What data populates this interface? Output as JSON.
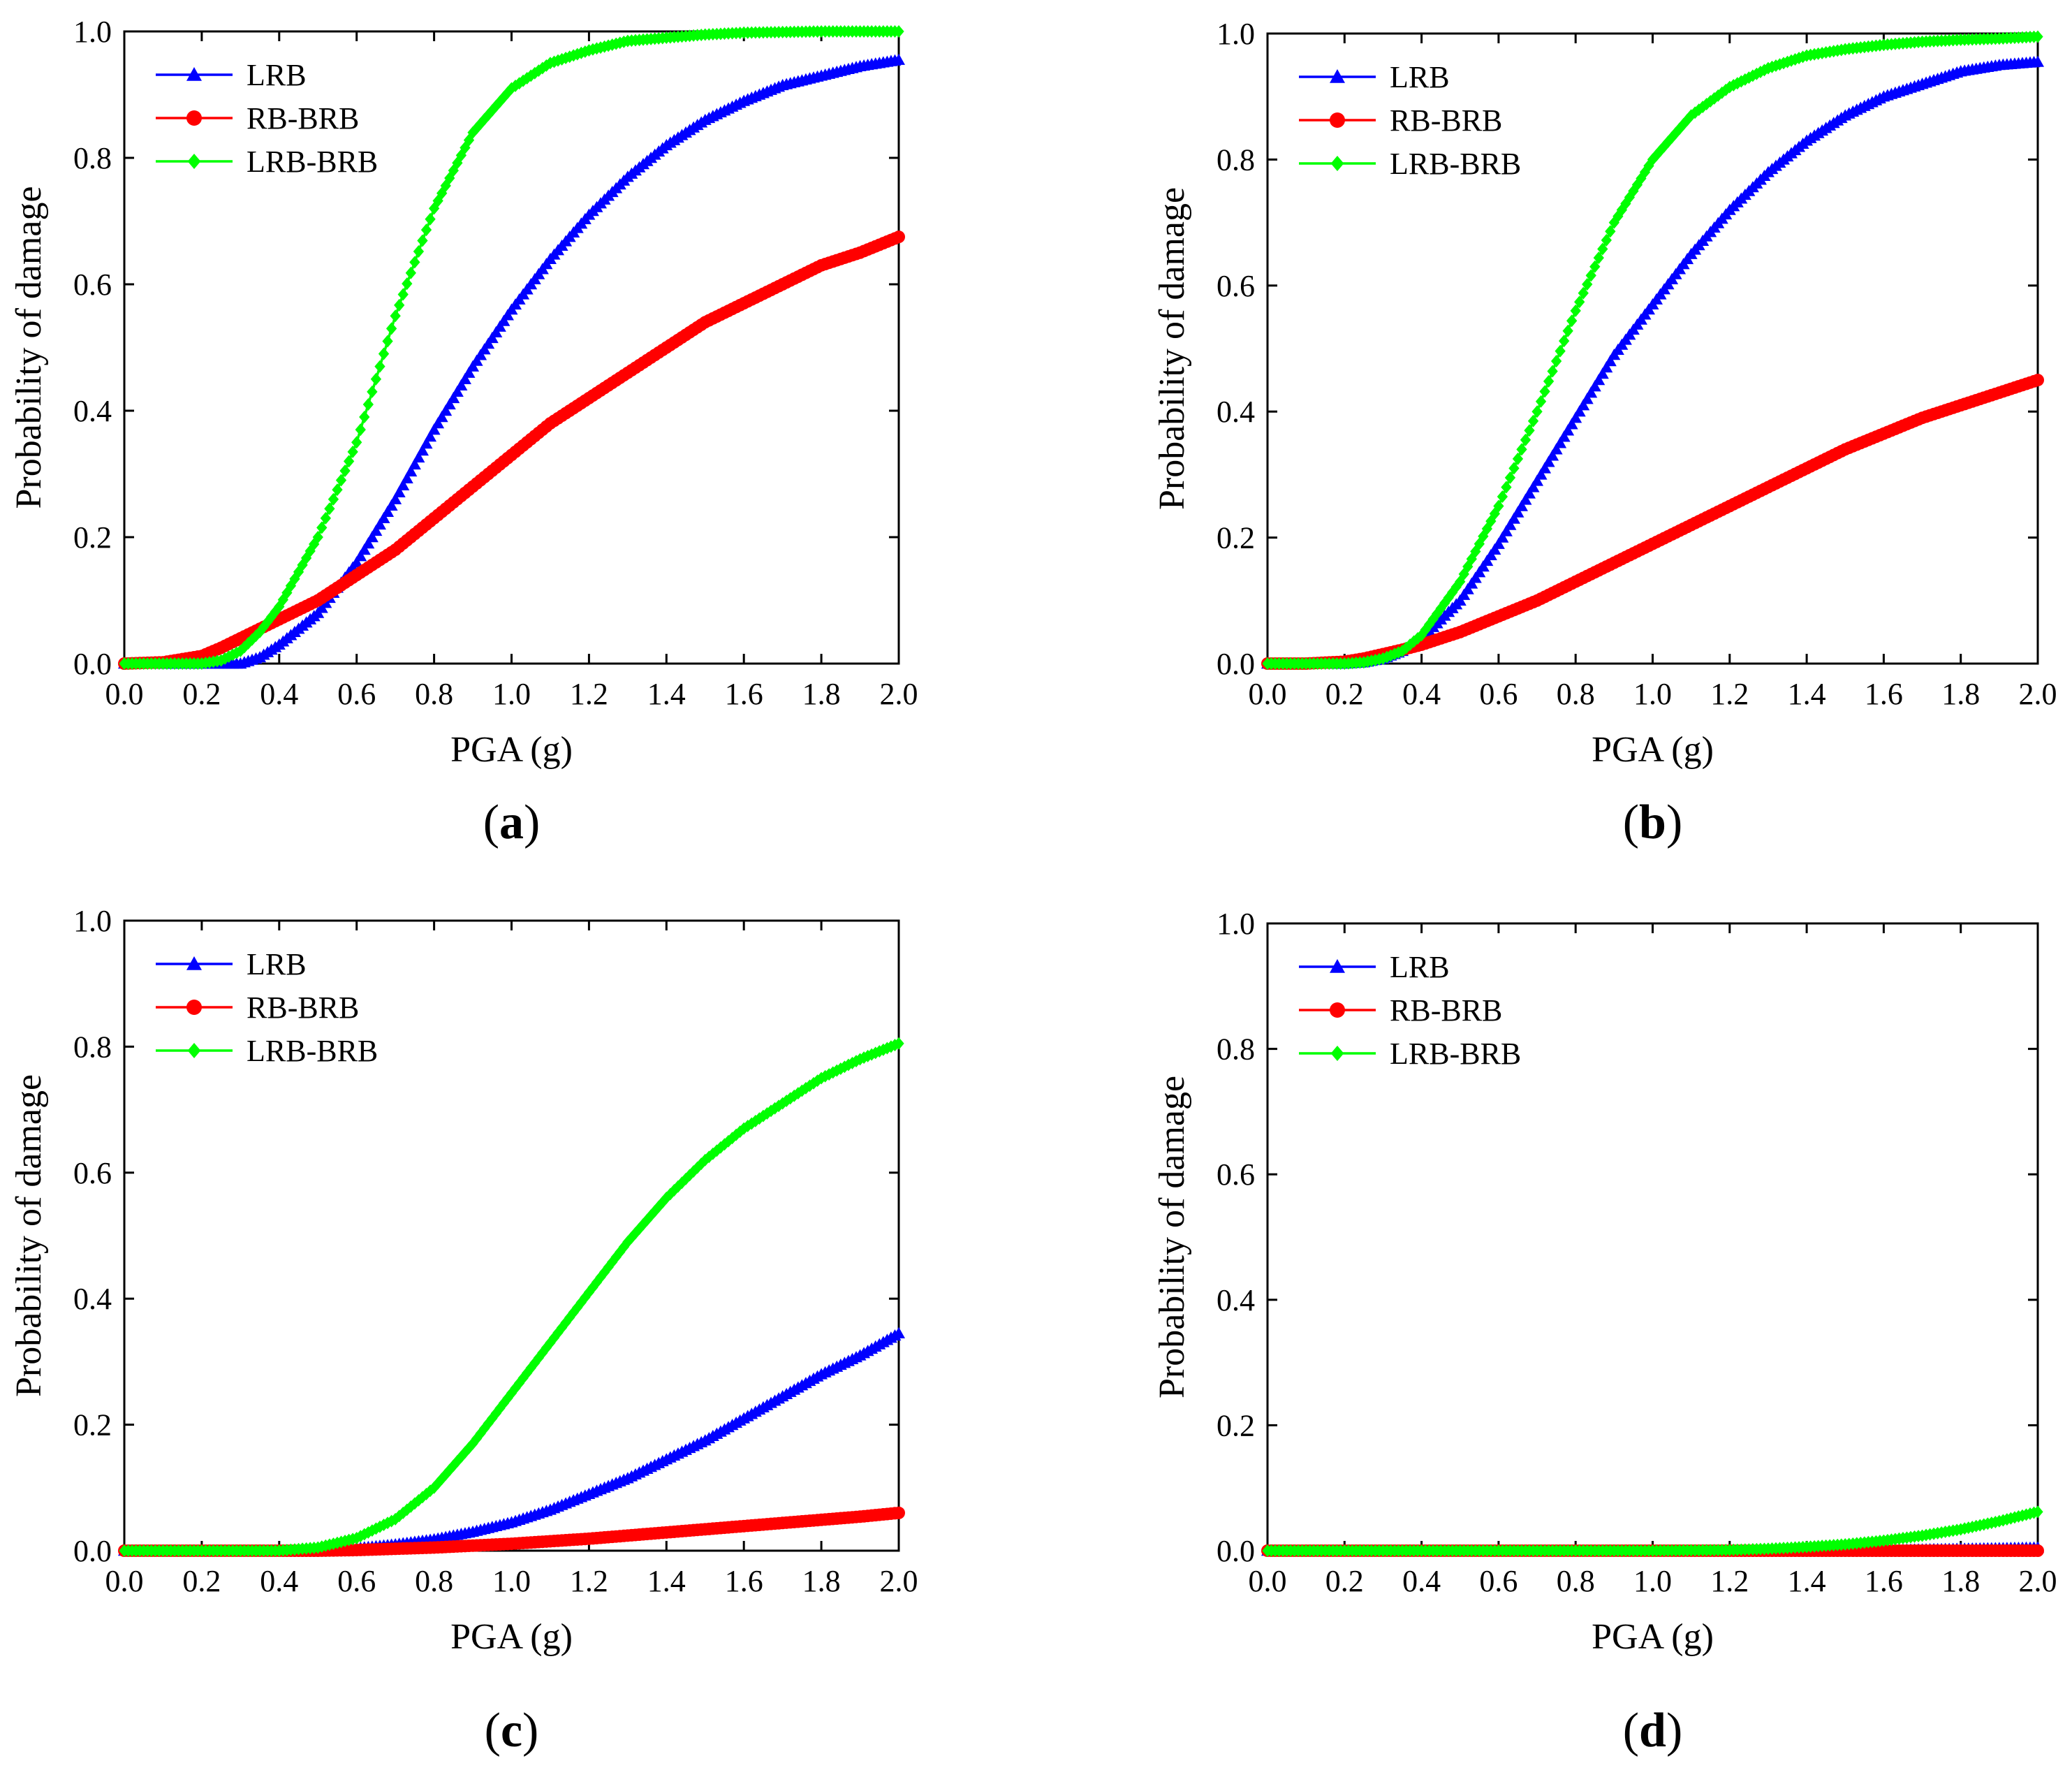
{
  "figure": {
    "description_labels": [
      "(a)",
      "(b)",
      "(c)",
      "(d)"
    ]
  },
  "colors": {
    "LRB": "#0000ff",
    "RB-BRB": "#ff0000",
    "LRB-BRB": "#00ff00",
    "axis": "#000000"
  },
  "chart_data": [
    {
      "type": "line",
      "panel": "a",
      "panel_label": "(a)",
      "panel_letter": "a",
      "xlabel": "PGA (g)",
      "ylabel": "Probability of damage",
      "xlim": [
        0.0,
        2.0
      ],
      "ylim": [
        0.0,
        1.0
      ],
      "xticks": [
        "0.0",
        "0.2",
        "0.4",
        "0.6",
        "0.8",
        "1.0",
        "1.2",
        "1.4",
        "1.6",
        "1.8",
        "2.0"
      ],
      "yticks": [
        "0.0",
        "0.2",
        "0.4",
        "0.6",
        "0.8",
        "1.0"
      ],
      "legend": [
        "LRB",
        "RB-BRB",
        "LRB-BRB"
      ],
      "legend_position": "top-left",
      "x": [
        0.0,
        0.1,
        0.2,
        0.25,
        0.3,
        0.35,
        0.4,
        0.5,
        0.6,
        0.7,
        0.8,
        0.9,
        1.0,
        1.1,
        1.2,
        1.3,
        1.4,
        1.5,
        1.6,
        1.7,
        1.8,
        1.9,
        2.0
      ],
      "series": [
        {
          "name": "LRB",
          "marker": "triangle",
          "values": [
            0.0,
            0.0,
            0.0,
            0.0,
            0.0,
            0.01,
            0.03,
            0.08,
            0.16,
            0.26,
            0.37,
            0.47,
            0.56,
            0.64,
            0.71,
            0.77,
            0.82,
            0.86,
            0.89,
            0.915,
            0.93,
            0.945,
            0.955
          ]
        },
        {
          "name": "RB-BRB",
          "marker": "circle",
          "values": [
            0.0,
            0.002,
            0.012,
            0.025,
            0.04,
            0.055,
            0.07,
            0.1,
            0.14,
            0.18,
            0.23,
            0.28,
            0.33,
            0.38,
            0.42,
            0.46,
            0.5,
            0.54,
            0.57,
            0.6,
            0.63,
            0.65,
            0.675
          ]
        },
        {
          "name": "LRB-BRB",
          "marker": "diamond",
          "values": [
            0.0,
            0.0,
            0.0,
            0.005,
            0.02,
            0.05,
            0.09,
            0.2,
            0.35,
            0.55,
            0.72,
            0.84,
            0.91,
            0.95,
            0.97,
            0.985,
            0.99,
            0.995,
            0.998,
            0.999,
            1.0,
            1.0,
            1.0
          ]
        }
      ]
    },
    {
      "type": "line",
      "panel": "b",
      "panel_label": "(b)",
      "panel_letter": "b",
      "xlabel": "PGA (g)",
      "ylabel": "Probability of damage",
      "xlim": [
        0.0,
        2.0
      ],
      "ylim": [
        0.0,
        1.0
      ],
      "xticks": [
        "0.0",
        "0.2",
        "0.4",
        "0.6",
        "0.8",
        "1.0",
        "1.2",
        "1.4",
        "1.6",
        "1.8",
        "2.0"
      ],
      "yticks": [
        "0.0",
        "0.2",
        "0.4",
        "0.6",
        "0.8",
        "1.0"
      ],
      "legend": [
        "LRB",
        "RB-BRB",
        "LRB-BRB"
      ],
      "legend_position": "top-left",
      "x": [
        0.0,
        0.1,
        0.2,
        0.25,
        0.3,
        0.35,
        0.4,
        0.5,
        0.6,
        0.7,
        0.8,
        0.9,
        1.0,
        1.1,
        1.2,
        1.3,
        1.4,
        1.5,
        1.6,
        1.7,
        1.8,
        1.9,
        2.0
      ],
      "series": [
        {
          "name": "LRB",
          "marker": "triangle",
          "values": [
            0.0,
            0.0,
            0.0,
            0.002,
            0.008,
            0.02,
            0.04,
            0.1,
            0.19,
            0.29,
            0.39,
            0.49,
            0.57,
            0.65,
            0.72,
            0.78,
            0.83,
            0.87,
            0.9,
            0.92,
            0.94,
            0.95,
            0.955
          ]
        },
        {
          "name": "RB-BRB",
          "marker": "circle",
          "values": [
            0.0,
            0.0,
            0.003,
            0.008,
            0.015,
            0.022,
            0.03,
            0.05,
            0.075,
            0.1,
            0.13,
            0.16,
            0.19,
            0.22,
            0.25,
            0.28,
            0.31,
            0.34,
            0.365,
            0.39,
            0.41,
            0.43,
            0.45
          ]
        },
        {
          "name": "LRB-BRB",
          "marker": "diamond",
          "values": [
            0.0,
            0.0,
            0.0,
            0.002,
            0.008,
            0.02,
            0.045,
            0.13,
            0.25,
            0.4,
            0.56,
            0.7,
            0.8,
            0.87,
            0.915,
            0.945,
            0.965,
            0.975,
            0.982,
            0.987,
            0.99,
            0.992,
            0.995
          ]
        }
      ]
    },
    {
      "type": "line",
      "panel": "c",
      "panel_label": "(c)",
      "panel_letter": "c",
      "xlabel": "PGA (g)",
      "ylabel": "Probability of damage",
      "xlim": [
        0.0,
        2.0
      ],
      "ylim": [
        0.0,
        1.0
      ],
      "xticks": [
        "0.0",
        "0.2",
        "0.4",
        "0.6",
        "0.8",
        "1.0",
        "1.2",
        "1.4",
        "1.6",
        "1.8",
        "2.0"
      ],
      "yticks": [
        "0.0",
        "0.2",
        "0.4",
        "0.6",
        "0.8",
        "1.0"
      ],
      "legend": [
        "LRB",
        "RB-BRB",
        "LRB-BRB"
      ],
      "legend_position": "top-left",
      "x": [
        0.0,
        0.2,
        0.4,
        0.5,
        0.6,
        0.7,
        0.8,
        0.9,
        1.0,
        1.1,
        1.2,
        1.3,
        1.4,
        1.5,
        1.6,
        1.7,
        1.8,
        1.9,
        2.0
      ],
      "series": [
        {
          "name": "LRB",
          "marker": "triangle",
          "values": [
            0.0,
            0.0,
            0.0,
            0.001,
            0.004,
            0.01,
            0.018,
            0.03,
            0.045,
            0.065,
            0.09,
            0.115,
            0.145,
            0.175,
            0.21,
            0.245,
            0.28,
            0.31,
            0.345
          ]
        },
        {
          "name": "RB-BRB",
          "marker": "circle",
          "values": [
            0.0,
            0.0,
            0.0,
            0.0,
            0.001,
            0.003,
            0.005,
            0.008,
            0.011,
            0.015,
            0.019,
            0.024,
            0.029,
            0.034,
            0.039,
            0.044,
            0.049,
            0.054,
            0.06
          ]
        },
        {
          "name": "LRB-BRB",
          "marker": "diamond",
          "values": [
            0.0,
            0.0,
            0.0,
            0.005,
            0.02,
            0.05,
            0.1,
            0.17,
            0.25,
            0.33,
            0.41,
            0.49,
            0.56,
            0.62,
            0.67,
            0.71,
            0.75,
            0.78,
            0.805
          ]
        }
      ]
    },
    {
      "type": "line",
      "panel": "d",
      "panel_label": "(d)",
      "panel_letter": "d",
      "xlabel": "PGA (g)",
      "ylabel": "Probability of damage",
      "xlim": [
        0.0,
        2.0
      ],
      "ylim": [
        0.0,
        1.0
      ],
      "xticks": [
        "0.0",
        "0.2",
        "0.4",
        "0.6",
        "0.8",
        "1.0",
        "1.2",
        "1.4",
        "1.6",
        "1.8",
        "2.0"
      ],
      "yticks": [
        "0.0",
        "0.2",
        "0.4",
        "0.6",
        "0.8",
        "1.0"
      ],
      "legend": [
        "LRB",
        "RB-BRB",
        "LRB-BRB"
      ],
      "legend_position": "top-left",
      "x": [
        0.0,
        0.4,
        0.8,
        1.0,
        1.2,
        1.3,
        1.4,
        1.5,
        1.6,
        1.7,
        1.8,
        1.9,
        2.0
      ],
      "series": [
        {
          "name": "LRB",
          "marker": "triangle",
          "values": [
            0.0,
            0.0,
            0.0,
            0.0,
            0.0,
            0.0,
            0.0,
            0.0,
            0.001,
            0.002,
            0.003,
            0.004,
            0.005
          ]
        },
        {
          "name": "RB-BRB",
          "marker": "circle",
          "values": [
            0.0,
            0.0,
            0.0,
            0.0,
            0.0,
            0.0,
            0.0,
            0.0,
            0.0,
            0.0,
            0.0,
            0.0,
            0.0
          ]
        },
        {
          "name": "LRB-BRB",
          "marker": "diamond",
          "values": [
            0.0,
            0.0,
            0.0,
            0.0,
            0.001,
            0.003,
            0.006,
            0.01,
            0.016,
            0.024,
            0.034,
            0.047,
            0.062
          ]
        }
      ]
    }
  ]
}
